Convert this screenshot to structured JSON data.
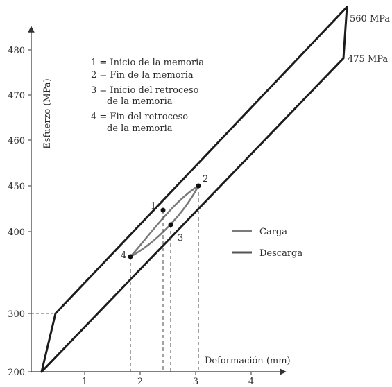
{
  "chart_data": {
    "type": "line",
    "xlabel": "Deformación (mm)",
    "ylabel": "Esfuerzo (MPa)",
    "x_ticks": [
      "1",
      "2",
      "3",
      "4"
    ],
    "y_ticks": [
      "200",
      "300",
      "400",
      "450",
      "460",
      "470",
      "480"
    ],
    "scale_note": "broken non-linear stress axis",
    "outer_loop": {
      "loading_start": [
        0.0,
        200
      ],
      "elastic_limit": [
        0.25,
        300
      ],
      "upper_end": [
        5.4,
        560
      ],
      "lower_end": [
        5.4,
        475
      ]
    },
    "end_labels": [
      "560 MPa",
      "475 MPa"
    ],
    "memory_points": [
      {
        "id": "1",
        "x": 2.4,
        "y": 430
      },
      {
        "id": "2",
        "x": 3.0,
        "y": 450
      },
      {
        "id": "3",
        "x": 2.55,
        "y": 410
      },
      {
        "id": "4",
        "x": 1.85,
        "y": 385
      }
    ],
    "memory_notes": [
      "1 = Inicio de la memoria",
      "2 = Fin de la memoria",
      "3 = Inicio del retroceso",
      "de la memoria",
      "4 = Fin del retroceso",
      "de la memoria"
    ],
    "series": [
      {
        "name": "Carga",
        "color": "#7a7a7a"
      },
      {
        "name": "Descarga",
        "color": "#555555"
      }
    ],
    "grid": false,
    "legend_position": "right-center"
  }
}
